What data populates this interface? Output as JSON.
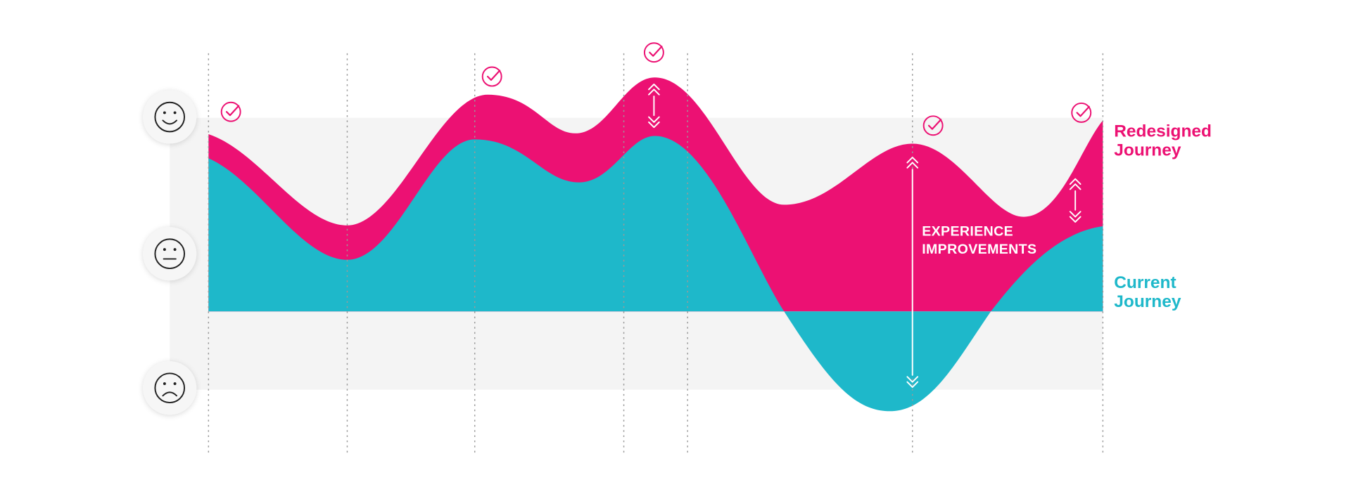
{
  "legend": {
    "redesigned": [
      "Redesigned",
      "Journey"
    ],
    "current": [
      "Current",
      "Journey"
    ]
  },
  "annotation": [
    "EXPERIENCE",
    "IMPROVEMENTS"
  ]
}
